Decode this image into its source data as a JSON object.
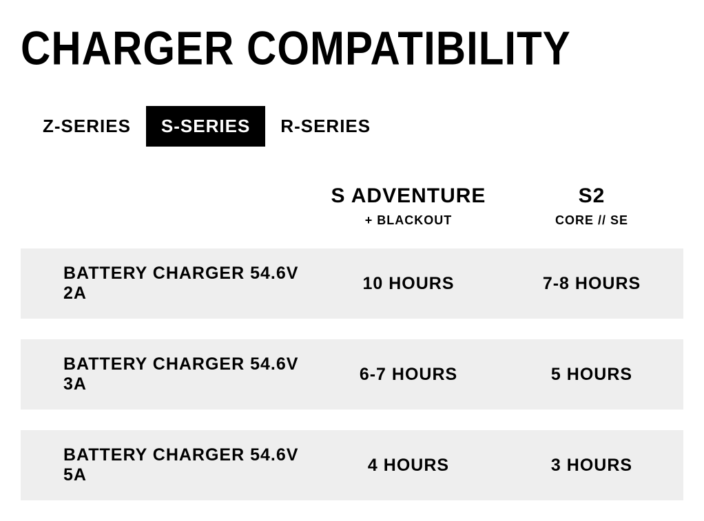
{
  "title": "CHARGER COMPATIBILITY",
  "tabs": [
    {
      "label": "Z-SERIES",
      "active": false
    },
    {
      "label": "S-SERIES",
      "active": true
    },
    {
      "label": "R-SERIES",
      "active": false
    }
  ],
  "columns": [
    {
      "title": "S ADVENTURE",
      "subtitle": "+ BLACKOUT"
    },
    {
      "title": "S2",
      "subtitle": "CORE // SE"
    }
  ],
  "rows": [
    {
      "label": "BATTERY CHARGER 54.6V 2A",
      "cells": [
        "10 HOURS",
        "7-8 HOURS"
      ]
    },
    {
      "label": "BATTERY CHARGER 54.6V 3A",
      "cells": [
        "6-7 HOURS",
        "5 HOURS"
      ]
    },
    {
      "label": "BATTERY CHARGER 54.6V 5A",
      "cells": [
        "4 HOURS",
        "3 HOURS"
      ]
    }
  ],
  "colors": {
    "background": "#ffffff",
    "text": "#000000",
    "active_tab_bg": "#000000",
    "active_tab_text": "#ffffff",
    "row_bg": "#eeeeee"
  }
}
